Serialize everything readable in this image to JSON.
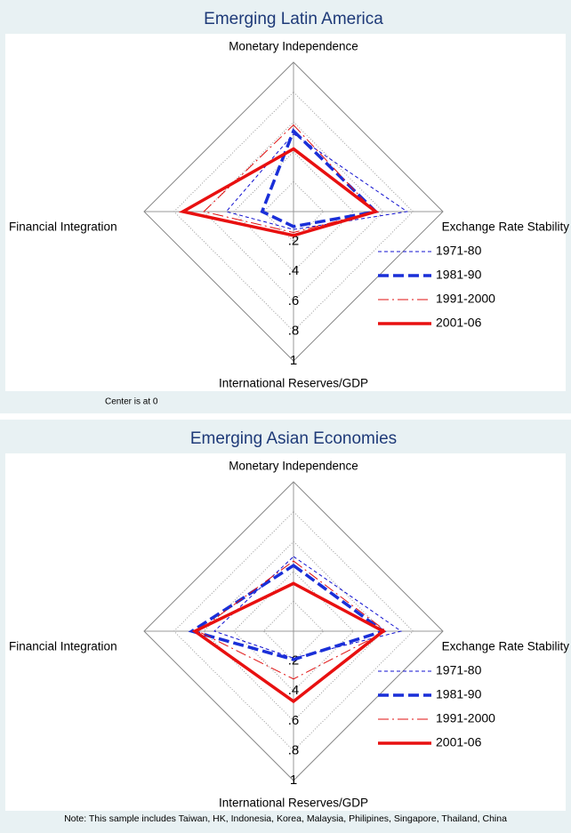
{
  "chart_data": [
    {
      "type": "radar",
      "title": "Emerging Latin America",
      "axes": [
        "Monetary Independence",
        "Exchange Rate Stability",
        "International Reserves/GDP",
        "Financial Integration"
      ],
      "rlim": [
        0,
        1
      ],
      "rticks": [
        {
          "value": 0.2,
          "label": ".2"
        },
        {
          "value": 0.4,
          "label": ".4"
        },
        {
          "value": 0.6,
          "label": ".6"
        },
        {
          "value": 0.8,
          "label": ".8"
        },
        1
      ],
      "note": "Center is at 0",
      "series": [
        {
          "name": "1971-80",
          "color": "#1010d0",
          "line_style": "dash",
          "values": [
            0.52,
            0.76,
            0.12,
            0.45
          ]
        },
        {
          "name": "1981-90",
          "color": "#1a2fd8",
          "line_style": "thick-dash",
          "values": [
            0.54,
            0.55,
            0.1,
            0.21
          ]
        },
        {
          "name": "1991-2000",
          "color": "#e01010",
          "line_style": "dash-dot",
          "values": [
            0.58,
            0.54,
            0.14,
            0.6
          ]
        },
        {
          "name": "2001-06",
          "color": "#e81010",
          "line_style": "thick-solid",
          "values": [
            0.42,
            0.55,
            0.16,
            0.74
          ]
        }
      ]
    },
    {
      "type": "radar",
      "title": "Emerging Asian Economies",
      "axes": [
        "Monetary Independence",
        "Exchange Rate Stability",
        "International Reserves/GDP",
        "Financial Integration"
      ],
      "rlim": [
        0,
        1
      ],
      "rticks": [
        {
          "value": 0.2,
          "label": ".2"
        },
        {
          "value": 0.4,
          "label": ".4"
        },
        {
          "value": 0.6,
          "label": ".6"
        },
        {
          "value": 0.8,
          "label": ".8"
        },
        1
      ],
      "note": "Note: This sample includes Taiwan, HK, Indonesia, Korea, Malaysia, Philipines, Singapore, Thailand, China",
      "series": [
        {
          "name": "1971-80",
          "color": "#1010d0",
          "line_style": "dash",
          "values": [
            0.5,
            0.72,
            0.18,
            0.53
          ]
        },
        {
          "name": "1981-90",
          "color": "#1a2fd8",
          "line_style": "thick-dash",
          "values": [
            0.44,
            0.6,
            0.19,
            0.68
          ]
        },
        {
          "name": "1991-2000",
          "color": "#e01010",
          "line_style": "dash-dot",
          "values": [
            0.47,
            0.62,
            0.32,
            0.64
          ]
        },
        {
          "name": "2001-06",
          "color": "#e81010",
          "line_style": "thick-solid",
          "values": [
            0.32,
            0.6,
            0.47,
            0.66
          ]
        }
      ]
    }
  ]
}
